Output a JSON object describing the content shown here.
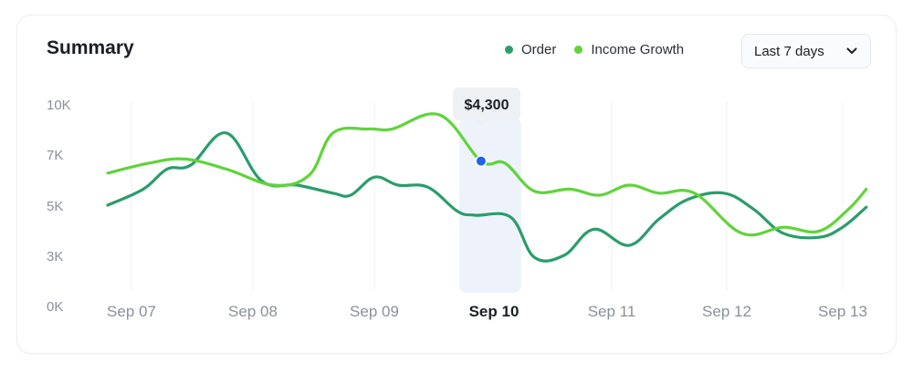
{
  "header": {
    "title": "Summary",
    "range_label": "Last 7 days"
  },
  "legend": [
    {
      "label": "Order",
      "color": "#2a9d6b"
    },
    {
      "label": "Income Growth",
      "color": "#5fd43a"
    }
  ],
  "tooltip": {
    "label": "$4,300",
    "category": "Sep 10"
  },
  "icons": {
    "range_chevron": "chevron-down-icon"
  },
  "chart_data": {
    "type": "line",
    "x_categories": [
      "Sep 07",
      "Sep 08",
      "Sep 09",
      "Sep 10",
      "Sep 11",
      "Sep 12",
      "Sep 13"
    ],
    "y_ticks": [
      "10K",
      "7K",
      "5K",
      "3K",
      "0K"
    ],
    "highlighted_category": "Sep 10",
    "grid": "vertical",
    "legend_position": "top-right",
    "series": [
      {
        "name": "Order",
        "color": "#2a9d6b",
        "points": [
          [
            6.8,
            5.0
          ],
          [
            7.1,
            5.8
          ],
          [
            7.3,
            6.8
          ],
          [
            7.5,
            7.0
          ],
          [
            7.8,
            8.6
          ],
          [
            8.1,
            6.2
          ],
          [
            8.4,
            6.0
          ],
          [
            8.7,
            5.6
          ],
          [
            8.85,
            5.5
          ],
          [
            9.05,
            6.4
          ],
          [
            9.25,
            6.0
          ],
          [
            9.5,
            5.9
          ],
          [
            9.75,
            4.7
          ],
          [
            9.9,
            4.5
          ],
          [
            10.2,
            4.4
          ],
          [
            10.4,
            2.4
          ],
          [
            10.65,
            2.5
          ],
          [
            10.9,
            3.8
          ],
          [
            11.2,
            3.0
          ],
          [
            11.45,
            4.3
          ],
          [
            11.7,
            5.3
          ],
          [
            12.0,
            5.6
          ],
          [
            12.25,
            4.8
          ],
          [
            12.5,
            3.6
          ],
          [
            12.8,
            3.4
          ],
          [
            13.0,
            3.9
          ],
          [
            13.2,
            4.9
          ]
        ]
      },
      {
        "name": "Income Growth",
        "color": "#5fd43a",
        "points": [
          [
            6.8,
            6.6
          ],
          [
            7.15,
            7.1
          ],
          [
            7.45,
            7.3
          ],
          [
            7.8,
            6.8
          ],
          [
            8.2,
            6.0
          ],
          [
            8.5,
            6.5
          ],
          [
            8.7,
            8.6
          ],
          [
            9.0,
            8.8
          ],
          [
            9.2,
            8.8
          ],
          [
            9.6,
            9.5
          ],
          [
            9.95,
            7.2
          ],
          [
            10.15,
            7.1
          ],
          [
            10.4,
            5.7
          ],
          [
            10.7,
            5.8
          ],
          [
            10.95,
            5.5
          ],
          [
            11.2,
            6.0
          ],
          [
            11.45,
            5.6
          ],
          [
            11.75,
            5.6
          ],
          [
            12.15,
            3.6
          ],
          [
            12.5,
            3.9
          ],
          [
            12.8,
            3.7
          ],
          [
            13.05,
            4.8
          ],
          [
            13.2,
            5.8
          ]
        ]
      }
    ],
    "highlight_point": {
      "series": "Income Growth",
      "x": 9.95,
      "y": 7.2,
      "color": "#1e63e9"
    }
  }
}
